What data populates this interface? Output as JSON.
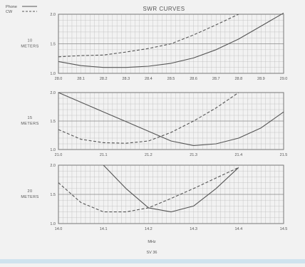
{
  "figure": {
    "title": "SWR CURVES",
    "legend": [
      {
        "label": "Phone",
        "style": "solid"
      },
      {
        "label": "CW",
        "style": "dashed"
      }
    ],
    "footer_xlabel": "MHz",
    "figure_id": "SV 36"
  },
  "colors": {
    "background": "#f2f2f2",
    "grid": "#bbbbbb",
    "frame": "#777777",
    "curve": "#555555"
  },
  "chart_data": [
    {
      "type": "line",
      "band_label": [
        "10",
        "METERS"
      ],
      "x_ticks": [
        "28.0",
        "28.1",
        "28.2",
        "28.3",
        "28.4",
        "28.5",
        "28.6",
        "28.7",
        "28.8",
        "28.9",
        "29.0"
      ],
      "y_ticks": [
        "1.0",
        "1.5",
        "2.0"
      ],
      "xlim": [
        28.0,
        29.0
      ],
      "ylim": [
        1.0,
        2.0
      ],
      "grid": true,
      "series": [
        {
          "name": "Phone",
          "style": "solid",
          "x": [
            28.0,
            28.1,
            28.2,
            28.3,
            28.4,
            28.5,
            28.6,
            28.7,
            28.8,
            28.9,
            29.0
          ],
          "y": [
            1.2,
            1.13,
            1.1,
            1.1,
            1.12,
            1.17,
            1.26,
            1.4,
            1.58,
            1.8,
            2.02
          ]
        },
        {
          "name": "CW",
          "style": "dashed",
          "x": [
            28.0,
            28.1,
            28.2,
            28.3,
            28.4,
            28.5,
            28.6,
            28.7,
            28.8
          ],
          "y": [
            1.28,
            1.3,
            1.31,
            1.36,
            1.42,
            1.5,
            1.65,
            1.82,
            2.0
          ]
        }
      ]
    },
    {
      "type": "line",
      "band_label": [
        "15",
        "METERS"
      ],
      "x_ticks": [
        "21.0",
        "21.1",
        "21.2",
        "21.3",
        "21.4",
        "21.5"
      ],
      "y_ticks": [
        "1.0",
        "1.5",
        "2.0"
      ],
      "xlim": [
        21.0,
        21.5
      ],
      "ylim": [
        1.0,
        2.0
      ],
      "grid": true,
      "series": [
        {
          "name": "Phone",
          "style": "solid",
          "x": [
            21.0,
            21.05,
            21.1,
            21.15,
            21.2,
            21.25,
            21.3,
            21.35,
            21.4,
            21.45,
            21.5
          ],
          "y": [
            2.0,
            1.83,
            1.66,
            1.49,
            1.32,
            1.15,
            1.07,
            1.1,
            1.2,
            1.38,
            1.66
          ]
        },
        {
          "name": "CW",
          "style": "dashed",
          "x": [
            21.0,
            21.05,
            21.1,
            21.15,
            21.2,
            21.25,
            21.3,
            21.35,
            21.4
          ],
          "y": [
            1.35,
            1.18,
            1.12,
            1.11,
            1.15,
            1.3,
            1.5,
            1.73,
            2.0
          ]
        }
      ]
    },
    {
      "type": "line",
      "band_label": [
        "20",
        "METERS"
      ],
      "x_ticks": [
        "14.0",
        "14.1",
        "14.2",
        "14.3",
        "14.4",
        "14.5"
      ],
      "y_ticks": [
        "1.0",
        "1.5",
        "2.0"
      ],
      "xlim": [
        14.0,
        14.5
      ],
      "ylim": [
        1.0,
        2.0
      ],
      "grid": true,
      "series": [
        {
          "name": "Phone",
          "style": "solid",
          "x": [
            14.1,
            14.15,
            14.2,
            14.25,
            14.3,
            14.35,
            14.4
          ],
          "y": [
            2.0,
            1.6,
            1.27,
            1.2,
            1.3,
            1.6,
            1.96
          ]
        },
        {
          "name": "CW",
          "style": "dashed",
          "x": [
            14.0,
            14.05,
            14.1,
            14.15,
            14.2,
            14.25,
            14.3,
            14.35,
            14.4
          ],
          "y": [
            1.7,
            1.36,
            1.2,
            1.2,
            1.27,
            1.43,
            1.6,
            1.78,
            1.96
          ]
        }
      ]
    }
  ]
}
